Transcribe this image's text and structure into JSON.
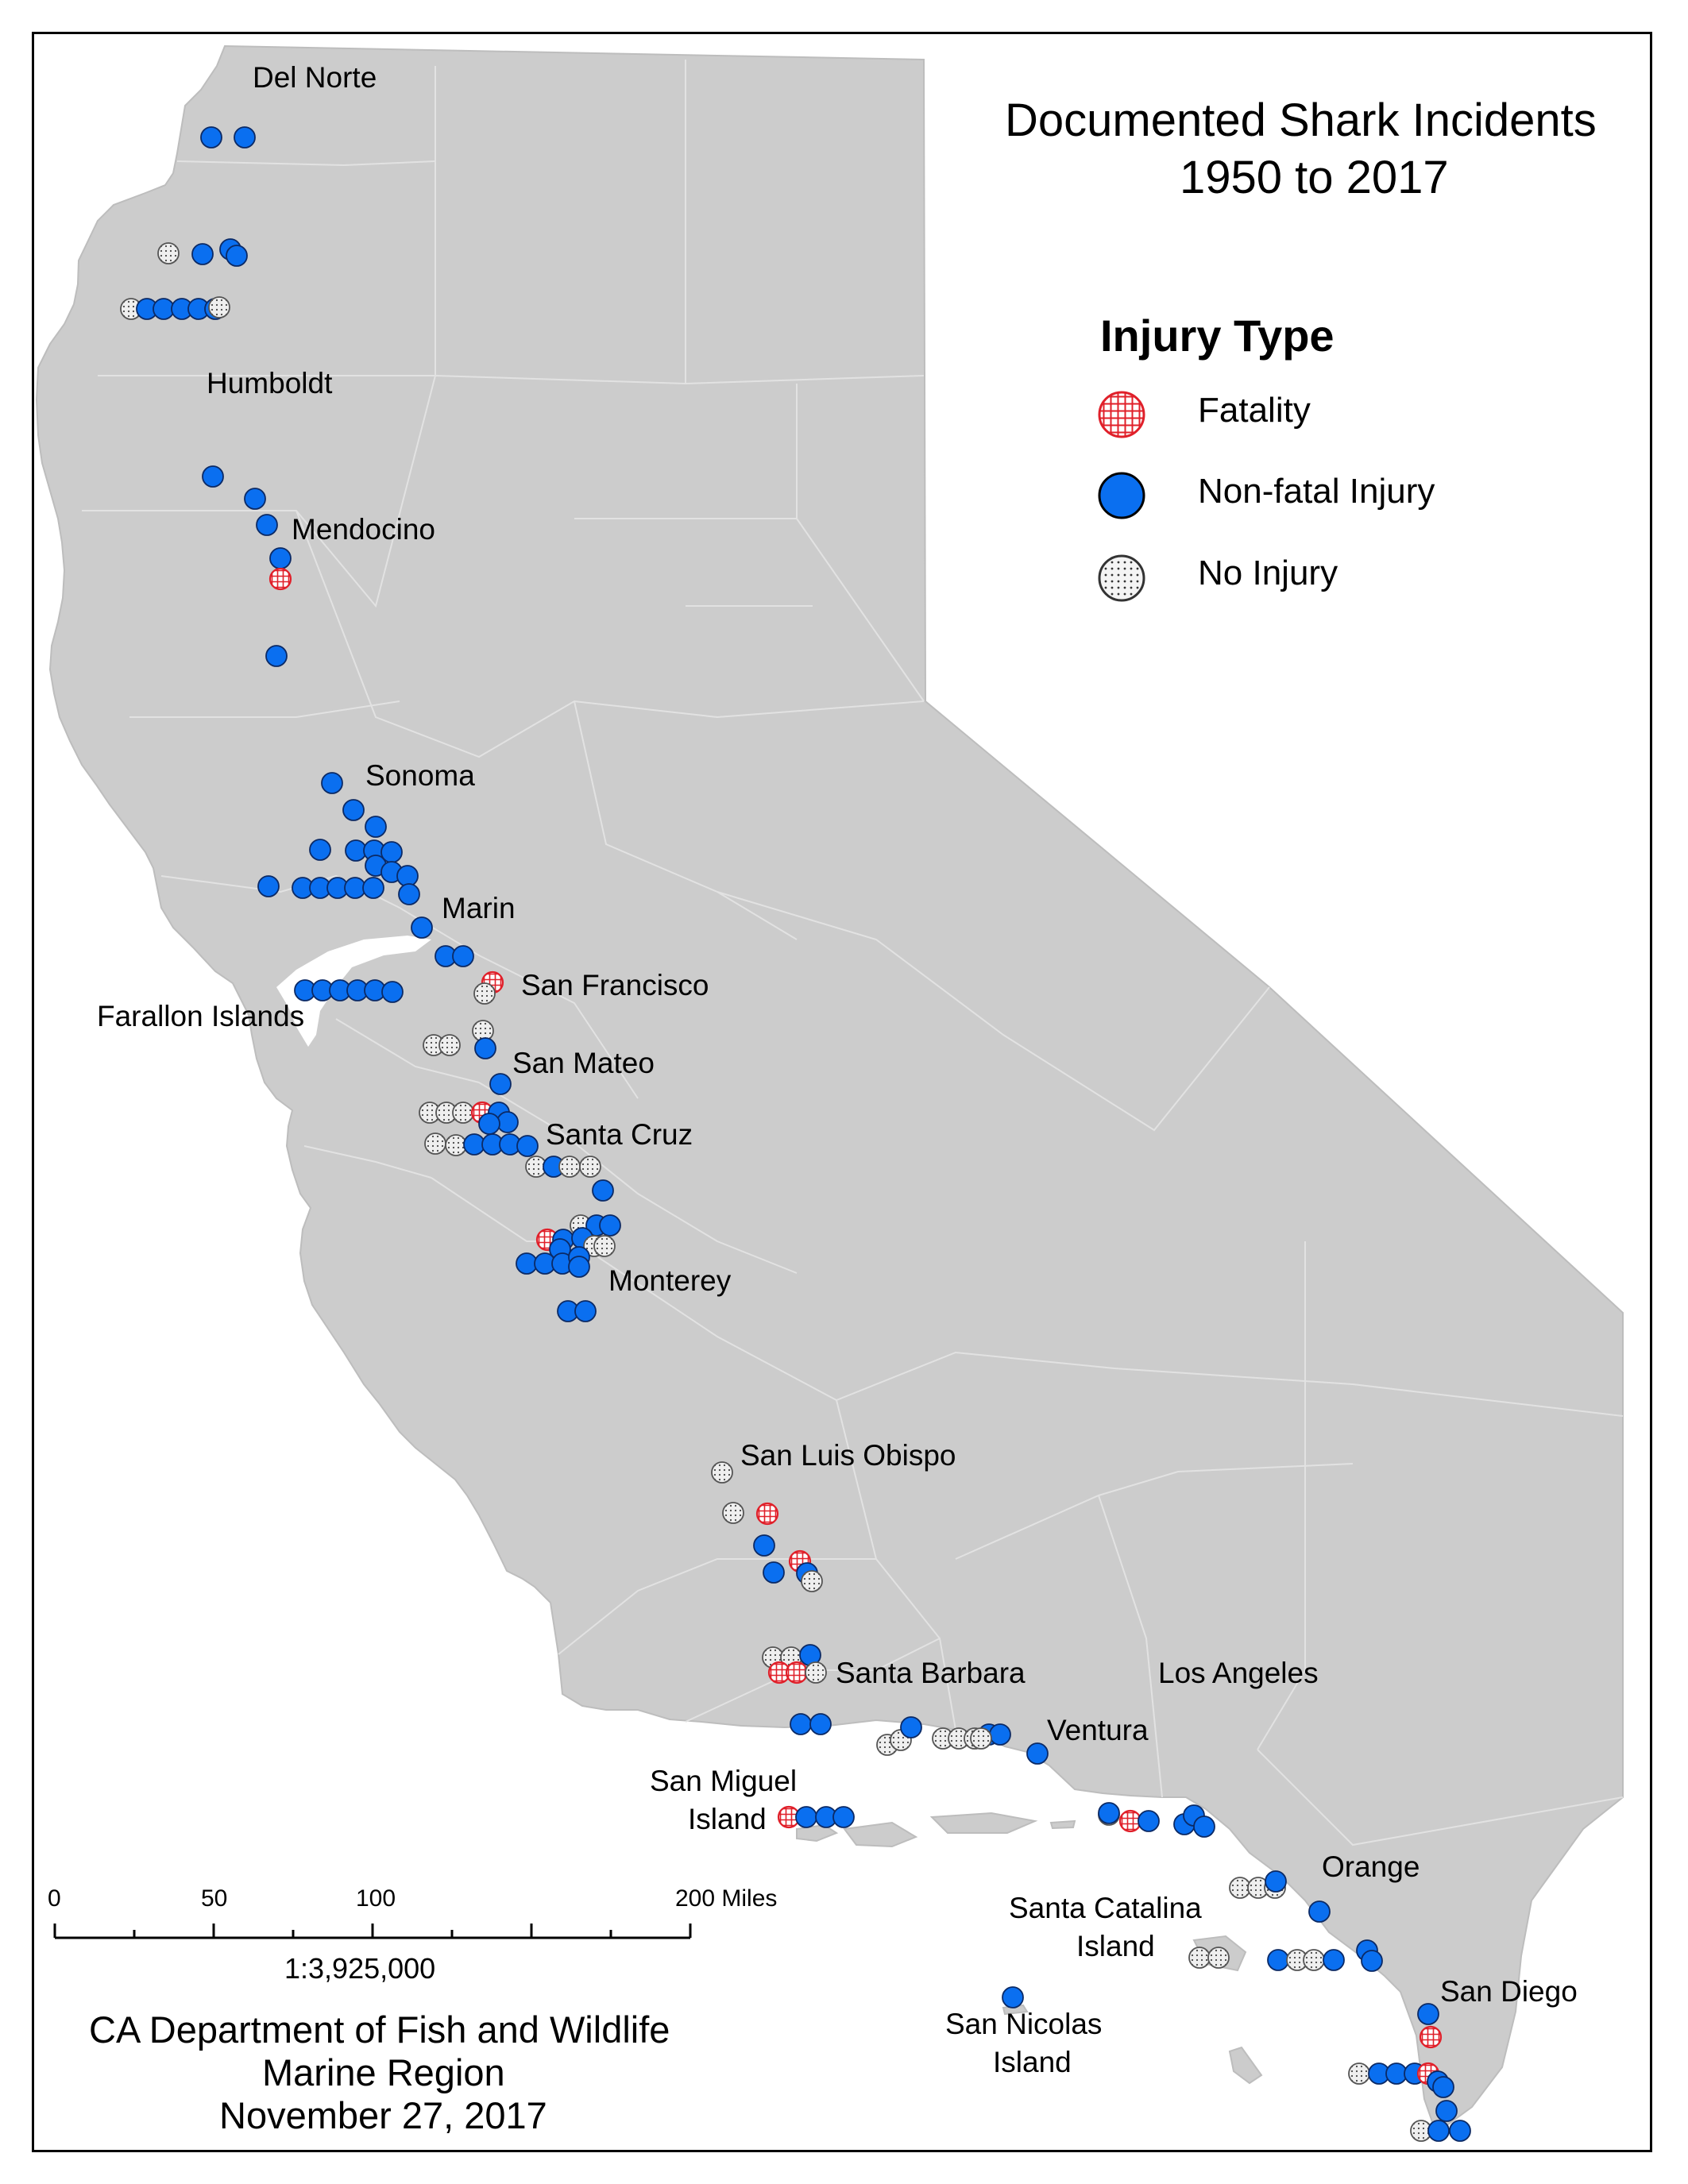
{
  "title": {
    "line1": "Documented Shark Incidents",
    "line2": "1950 to 2017"
  },
  "legend": {
    "heading": "Injury Type",
    "items": [
      {
        "key": "fatality",
        "label": "Fatality",
        "color": "#e0202a",
        "icon": "red-crosshatch-circle"
      },
      {
        "key": "nonfatal",
        "label": "Non-fatal Injury",
        "color": "#0a6ff0",
        "icon": "blue-filled-circle"
      },
      {
        "key": "noinjury",
        "label": "No Injury",
        "color": "#cfcfcf",
        "icon": "stippled-grey-circle"
      }
    ]
  },
  "colors": {
    "land": "#cccccc",
    "county_border": "#e2e2e2",
    "ocean": "#ffffff",
    "frame": "#000000"
  },
  "counties": {
    "del_norte": "Del Norte",
    "humboldt": "Humboldt",
    "mendocino": "Mendocino",
    "sonoma": "Sonoma",
    "marin": "Marin",
    "san_francisco": "San Francisco",
    "farallon": "Farallon Islands",
    "san_mateo": "San Mateo",
    "santa_cruz": "Santa Cruz",
    "monterey": "Monterey",
    "san_luis_obispo": "San Luis Obispo",
    "santa_barbara": "Santa Barbara",
    "los_angeles": "Los Angeles",
    "ventura": "Ventura",
    "san_miguel_1": "San Miguel",
    "san_miguel_2": "Island",
    "orange": "Orange",
    "santa_catalina_1": "Santa Catalina",
    "santa_catalina_2": "Island",
    "san_diego": "San Diego",
    "san_nicolas_1": "San Nicolas",
    "san_nicolas_2": "Island"
  },
  "scale_bar": {
    "t0": "0",
    "t50": "50",
    "t100": "100",
    "t200": "200 Miles",
    "ratio": "1:3,925,000"
  },
  "credit": {
    "line1": "CA Department of Fish and Wildlife",
    "line2": "Marine Region",
    "line3": "November 27, 2017"
  }
}
